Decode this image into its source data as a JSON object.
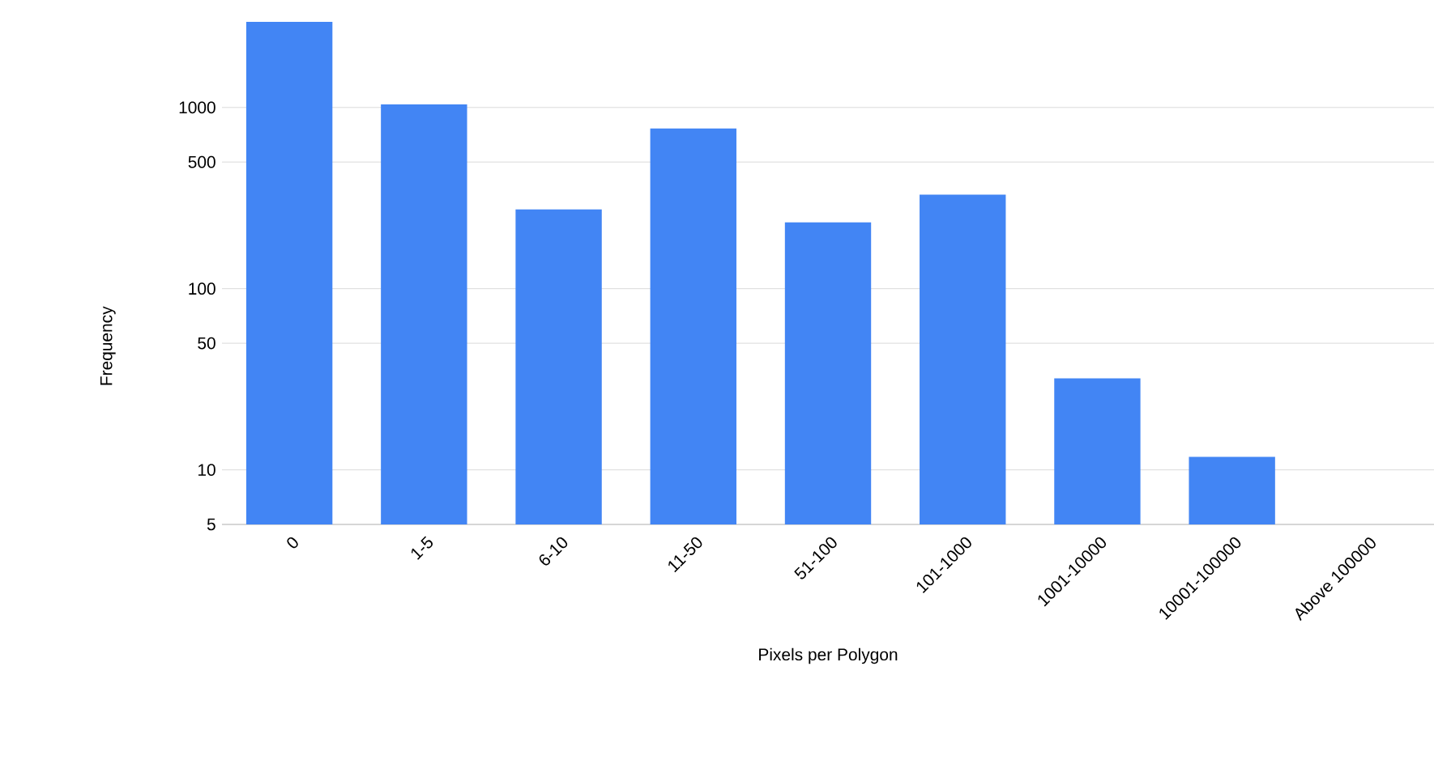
{
  "chart_data": {
    "type": "bar",
    "xlabel": "Pixels per Polygon",
    "ylabel": "Frequency",
    "categories": [
      "0",
      "1-5",
      "6-10",
      "11-50",
      "51-100",
      "101-1000",
      "1001-10000",
      "10001-100000",
      "Above 100000"
    ],
    "values": [
      2970,
      1040,
      274,
      766,
      232,
      330,
      32,
      11.8,
      null
    ],
    "color": "#4285f4",
    "log": "y",
    "ylim": [
      5,
      3000
    ],
    "yticks": [
      5,
      10,
      50,
      100,
      500,
      1000
    ],
    "grid": "y"
  }
}
